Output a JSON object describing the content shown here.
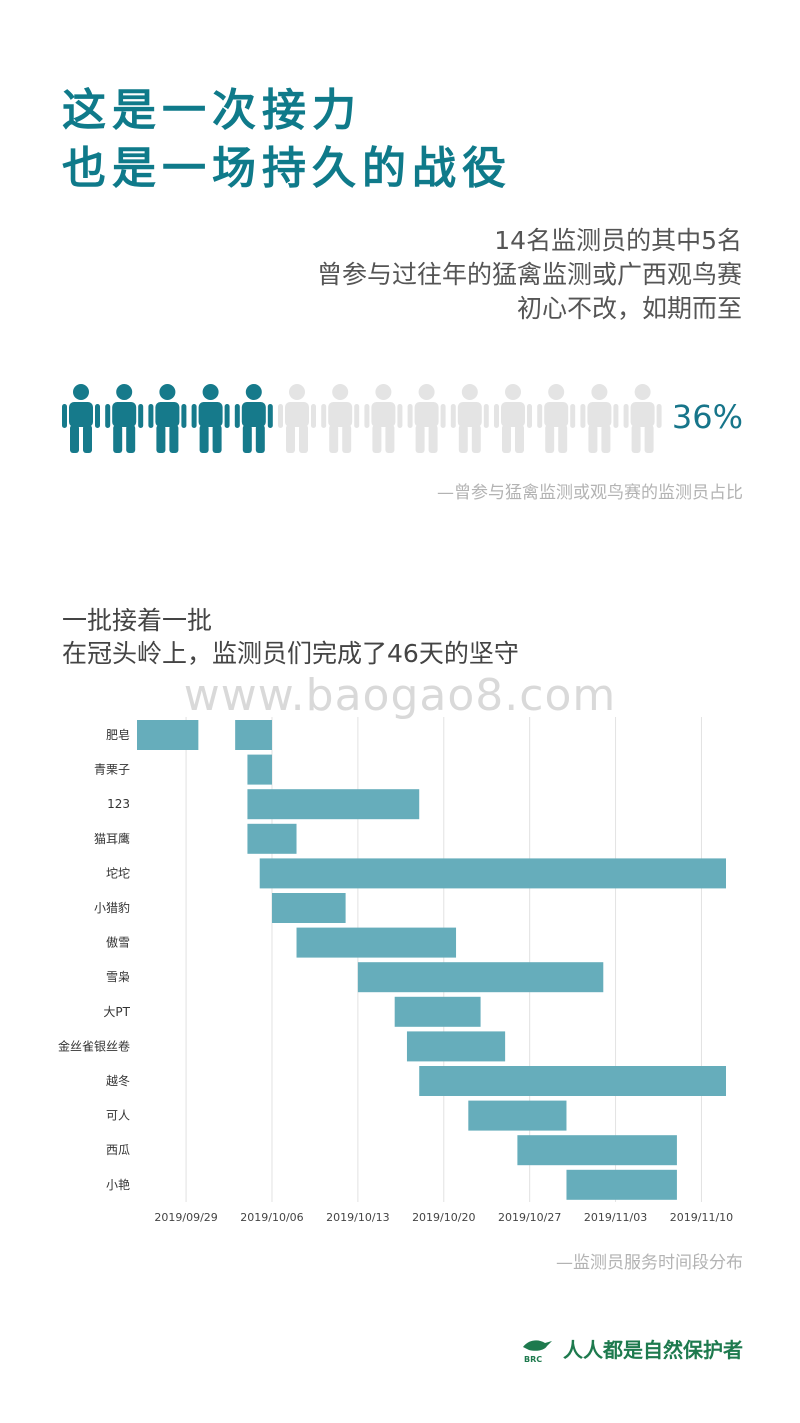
{
  "title": {
    "line1": "这是一次接力",
    "line2": "也是一场持久的战役"
  },
  "intro": {
    "line1": "14名监测员的其中5名",
    "line2": "曾参与过往年的猛禽监测或广西观鸟赛",
    "line3": "初心不改，如期而至"
  },
  "pictogram": {
    "total": 14,
    "highlighted": 5,
    "highlight_color": "#167a8b",
    "muted_color": "#e4e4e4",
    "percent_label": "36%",
    "caption": "—曾参与猛禽监测或观鸟赛的监测员占比"
  },
  "section2": {
    "line1": "一批接着一批",
    "line2": "在冠头岭上，监测员们完成了46天的坚守"
  },
  "watermark": "www.baogao8.com",
  "chart_data": {
    "type": "bar",
    "orientation": "horizontal-timeline",
    "bar_color": "#66adbb",
    "x_range": [
      "2019-09-25",
      "2019-11-12"
    ],
    "x_ticks": [
      "2019/09/29",
      "2019/10/06",
      "2019/10/13",
      "2019/10/20",
      "2019/10/27",
      "2019/11/03",
      "2019/11/10"
    ],
    "grid": "vertical",
    "rows": [
      {
        "name": "肥皂",
        "periods": [
          [
            "2019-09-25",
            "2019-09-30"
          ],
          [
            "2019-10-03",
            "2019-10-06"
          ]
        ]
      },
      {
        "name": "青栗子",
        "periods": [
          [
            "2019-10-04",
            "2019-10-06"
          ]
        ]
      },
      {
        "name": "123",
        "periods": [
          [
            "2019-10-04",
            "2019-10-18"
          ]
        ]
      },
      {
        "name": "猫耳鹰",
        "periods": [
          [
            "2019-10-04",
            "2019-10-08"
          ]
        ]
      },
      {
        "name": "坨坨",
        "periods": [
          [
            "2019-10-05",
            "2019-11-12"
          ]
        ]
      },
      {
        "name": "小猎豹",
        "periods": [
          [
            "2019-10-06",
            "2019-10-12"
          ]
        ]
      },
      {
        "name": "傲雪",
        "periods": [
          [
            "2019-10-08",
            "2019-10-21"
          ]
        ]
      },
      {
        "name": "雪枭",
        "periods": [
          [
            "2019-10-13",
            "2019-11-02"
          ]
        ]
      },
      {
        "name": "大PT",
        "periods": [
          [
            "2019-10-16",
            "2019-10-23"
          ]
        ]
      },
      {
        "name": "金丝雀银丝卷",
        "periods": [
          [
            "2019-10-17",
            "2019-10-25"
          ]
        ]
      },
      {
        "name": "越冬",
        "periods": [
          [
            "2019-10-18",
            "2019-11-12"
          ]
        ]
      },
      {
        "name": "可人",
        "periods": [
          [
            "2019-10-22",
            "2019-10-30"
          ]
        ]
      },
      {
        "name": "西瓜",
        "periods": [
          [
            "2019-10-26",
            "2019-11-08"
          ]
        ]
      },
      {
        "name": "小艳",
        "periods": [
          [
            "2019-10-30",
            "2019-11-08"
          ]
        ]
      }
    ],
    "caption": "—监测员服务时间段分布"
  },
  "brand": {
    "text": "人人都是自然保护者",
    "logo_text": "BRC",
    "color": "#1e7a4e"
  }
}
